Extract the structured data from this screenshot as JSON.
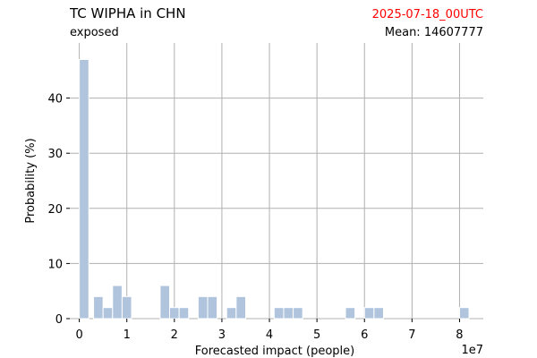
{
  "chart_data": {
    "type": "bar",
    "title": "TC WIPHA in CHN",
    "subtitle": "exposed",
    "date_label": "2025-07-18_00UTC",
    "mean_label": "Mean: 14607777",
    "xlabel": "Forecasted impact (people)",
    "ylabel": "Probability (%)",
    "x_offset_label": "1e7",
    "xlim": [
      -0.2,
      8.5
    ],
    "ylim": [
      0,
      50
    ],
    "xticks": [
      0,
      1,
      2,
      3,
      4,
      5,
      6,
      7,
      8
    ],
    "xtick_labels": [
      "0",
      "1",
      "2",
      "3",
      "4",
      "5",
      "6",
      "7",
      "8"
    ],
    "yticks": [
      0,
      10,
      20,
      30,
      40
    ],
    "ytick_labels": [
      "0",
      "10",
      "20",
      "30",
      "40"
    ],
    "grid": true,
    "bar_color": "#b0c4de",
    "date_color": "#ff0000",
    "bin_width": 0.2,
    "bars": [
      {
        "x": 0.0,
        "value": 47
      },
      {
        "x": 0.3,
        "value": 4
      },
      {
        "x": 0.5,
        "value": 2
      },
      {
        "x": 0.7,
        "value": 6
      },
      {
        "x": 0.9,
        "value": 4
      },
      {
        "x": 1.7,
        "value": 6
      },
      {
        "x": 1.9,
        "value": 2
      },
      {
        "x": 2.1,
        "value": 2
      },
      {
        "x": 2.5,
        "value": 4
      },
      {
        "x": 2.7,
        "value": 4
      },
      {
        "x": 3.1,
        "value": 2
      },
      {
        "x": 3.3,
        "value": 4
      },
      {
        "x": 4.1,
        "value": 2
      },
      {
        "x": 4.3,
        "value": 2
      },
      {
        "x": 4.5,
        "value": 2
      },
      {
        "x": 5.6,
        "value": 2
      },
      {
        "x": 6.0,
        "value": 2
      },
      {
        "x": 6.2,
        "value": 2
      },
      {
        "x": 8.0,
        "value": 2
      }
    ]
  }
}
